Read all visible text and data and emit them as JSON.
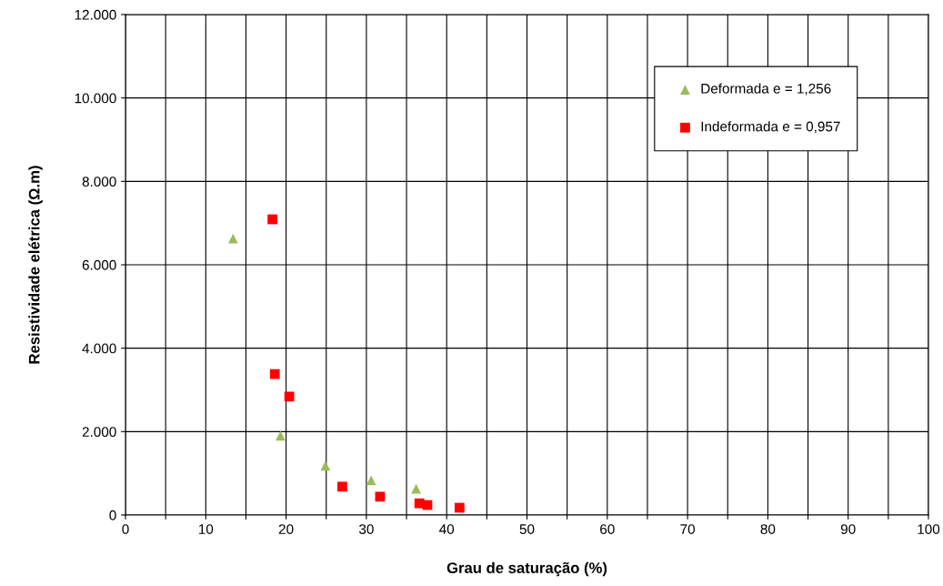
{
  "chart_data": {
    "type": "scatter",
    "xlabel": "Grau de saturação (%)",
    "ylabel": "Resistividade elétrica (Ω.m)",
    "series": [
      {
        "name": "Deformada e = 1,256",
        "color": "#9bbb59",
        "marker": "triangle",
        "x": [
          13.4,
          19.3,
          24.9,
          30.6,
          36.2
        ],
        "values": [
          6630,
          1900,
          1180,
          830,
          630
        ]
      },
      {
        "name": "Indeformada e = 0,957",
        "color": "#ff0000",
        "marker": "square",
        "x": [
          18.3,
          18.6,
          20.4,
          27.0,
          31.7,
          36.6,
          37.6,
          41.6
        ],
        "values": [
          7090,
          3380,
          2840,
          680,
          440,
          280,
          240,
          175
        ]
      }
    ],
    "xlim": [
      0,
      100
    ],
    "xticks": [
      0,
      {
        "value": 5,
        "label": null
      },
      10,
      {
        "value": 15,
        "label": null
      },
      20,
      {
        "value": 25,
        "label": null
      },
      30,
      {
        "value": 35,
        "label": null
      },
      40,
      {
        "value": 45,
        "label": null
      },
      50,
      {
        "value": 55,
        "label": null
      },
      60,
      {
        "value": 65,
        "label": null
      },
      70,
      {
        "value": 75,
        "label": null
      },
      80,
      {
        "value": 85,
        "label": null
      },
      90,
      {
        "value": 95,
        "label": null
      },
      100
    ],
    "ylim": [
      0,
      12000
    ],
    "yticks": [
      {
        "value": 0,
        "label": "0"
      },
      {
        "value": 2000,
        "label": "2.000"
      },
      {
        "value": 4000,
        "label": "4.000"
      },
      {
        "value": 6000,
        "label": "6.000"
      },
      {
        "value": 8000,
        "label": "8.000"
      },
      {
        "value": 10000,
        "label": "10.000"
      },
      {
        "value": 12000,
        "label": "12.000"
      }
    ],
    "grid": true,
    "legend": "top right"
  }
}
